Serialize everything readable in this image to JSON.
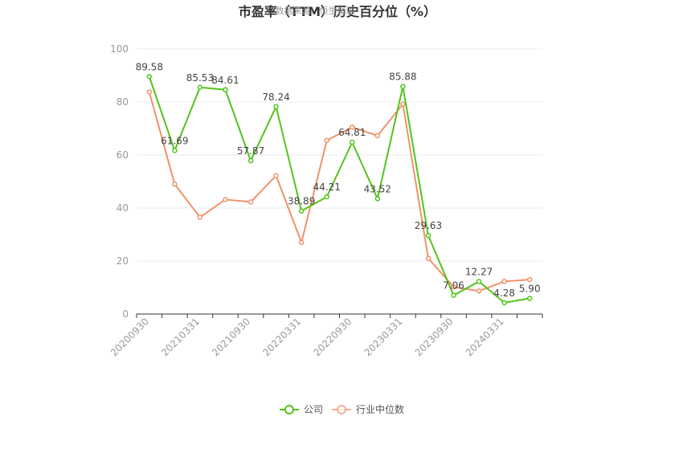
{
  "chart_data": {
    "type": "line",
    "title": "市盈率（TTM）历史百分位（%）",
    "watermark": "数据来源：恒生聚源",
    "ylim": [
      0,
      100
    ],
    "yticks": [
      0,
      20,
      40,
      60,
      80,
      100
    ],
    "x": [
      "20200930",
      "20201231",
      "20210331",
      "20210630",
      "20210930",
      "20211231",
      "20220331",
      "20220630",
      "20220930",
      "20221231",
      "20230331",
      "20230630",
      "20230930",
      "20231231",
      "20240331",
      "20240630"
    ],
    "xtick_labels": [
      "20200930",
      "20210331",
      "20210930",
      "20220331",
      "20220930",
      "20230331",
      "20230930",
      "20240331"
    ],
    "grid": true,
    "legend_position": "bottom",
    "series": [
      {
        "name": "公司",
        "color": "#52c41a",
        "values": [
          89.58,
          61.69,
          85.53,
          84.61,
          57.87,
          78.24,
          38.89,
          44.21,
          64.81,
          43.52,
          85.88,
          29.63,
          7.06,
          12.27,
          4.28,
          5.9
        ],
        "labels": [
          "89.58",
          "61.69",
          "85.53",
          "84.61",
          "57.87",
          "78.24",
          "38.89",
          "44.21",
          "64.81",
          "43.52",
          "85.88",
          "29.63",
          "7.06",
          "12.27",
          "4.28",
          "5.90"
        ]
      },
      {
        "name": "行业中位数",
        "color": "#f0926a",
        "values": [
          83.8,
          49.0,
          36.5,
          43.2,
          42.3,
          52.2,
          27.0,
          65.5,
          70.5,
          67.3,
          79.2,
          21.0,
          10.2,
          8.7,
          12.3,
          13.0
        ]
      }
    ]
  }
}
